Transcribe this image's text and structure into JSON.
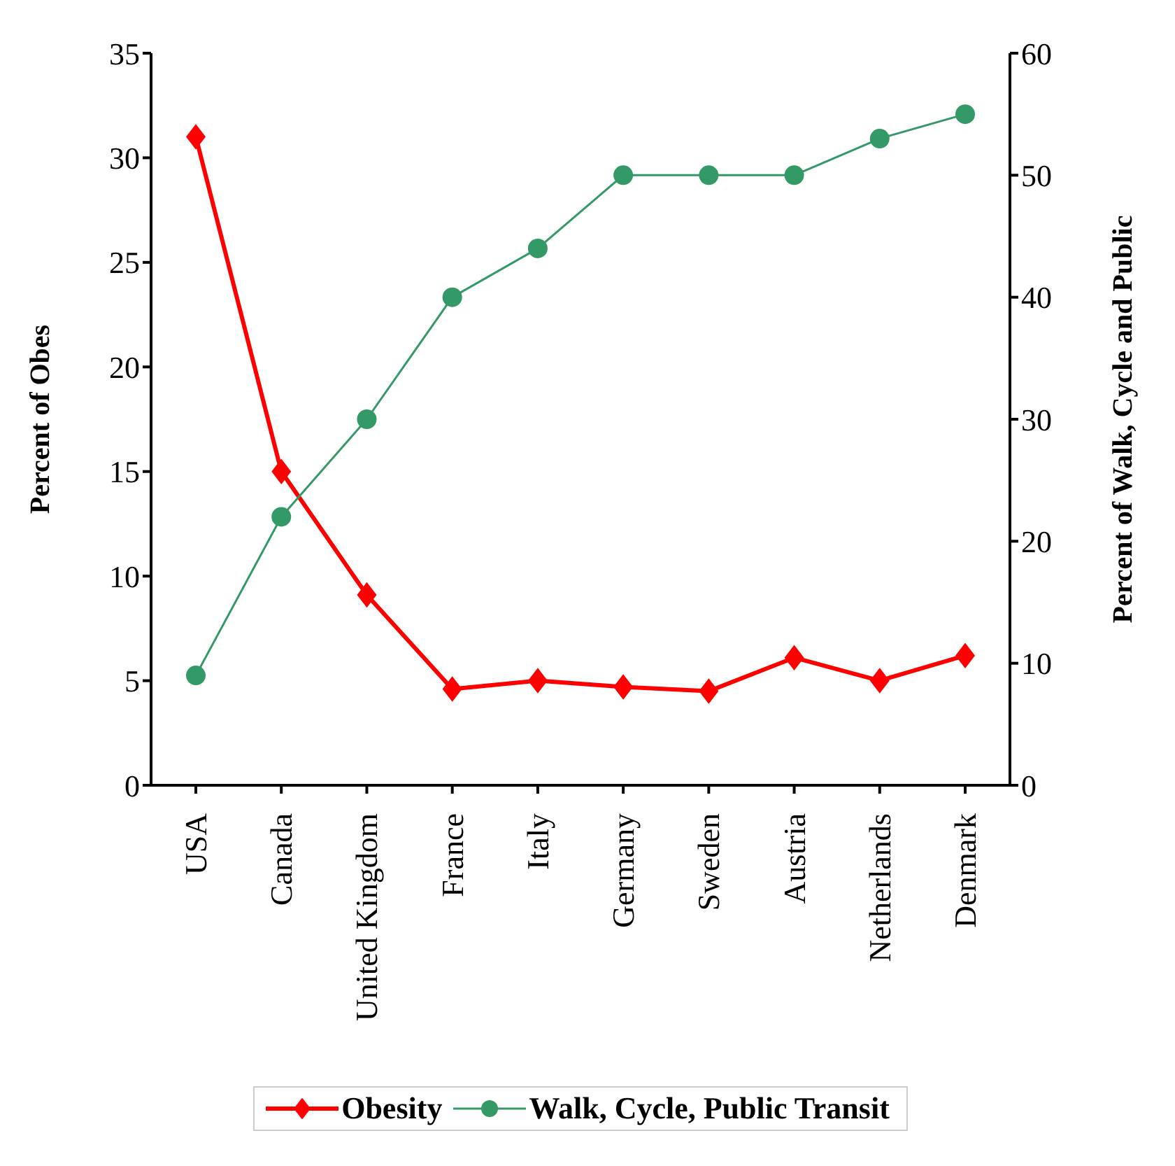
{
  "chart_data": {
    "type": "line",
    "categories": [
      "USA",
      "Canada",
      "United Kingdom",
      "France",
      "Italy",
      "Germany",
      "Sweden",
      "Austria",
      "Netherlands",
      "Denmark"
    ],
    "ylabel": "Percent of Obes",
    "y2label": "Percent of Walk, Cycle and Public",
    "ylim": [
      0,
      35
    ],
    "yticks": [
      0,
      5,
      10,
      15,
      20,
      25,
      30,
      35
    ],
    "y2lim": [
      0,
      60
    ],
    "y2ticks": [
      0,
      10,
      20,
      30,
      40,
      50,
      60
    ],
    "legend": "bottom",
    "grid": false,
    "series": [
      {
        "name": "Obesity",
        "color": "#ff0000",
        "marker": "diamond",
        "values": [
          31,
          15,
          9.1,
          4.6,
          5,
          4.7,
          4.5,
          6.1,
          5,
          6.2
        ]
      },
      {
        "name": "Walk, Cycle, Public Transit",
        "color": "#339966",
        "marker": "circle",
        "axis": "y2",
        "values": [
          9,
          22,
          30,
          40,
          44,
          50,
          50,
          50,
          53,
          55
        ]
      }
    ]
  }
}
